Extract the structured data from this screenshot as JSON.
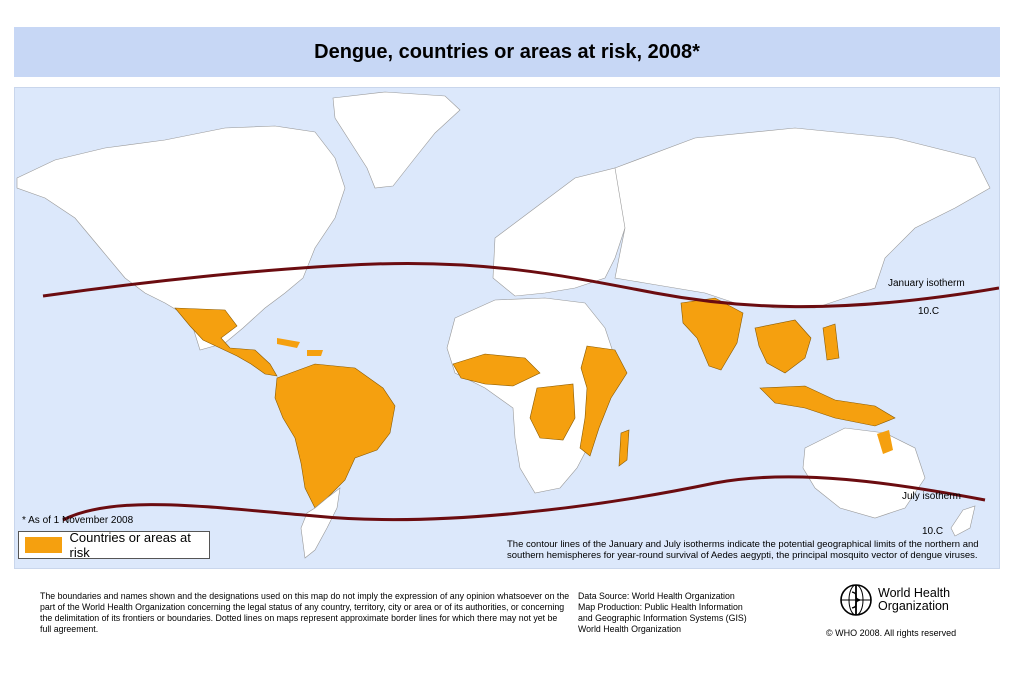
{
  "title": "Dengue, countries or areas at risk, 2008*",
  "footnote_asof": "* As of 1 November 2008",
  "legend": {
    "label": "Countries or areas at risk",
    "color": "#f5a00f"
  },
  "isotherms": {
    "january_label": "January isotherm",
    "january_temp": "10.C",
    "july_label": "July  isotherm",
    "july_temp": "10.C",
    "line_color": "#6b0c10"
  },
  "isotherm_note": "The contour lines of the January and July isotherms indicate the potential geographical limits of the northern and southern hemispheres for year-round survival of Aedes aegypti, the principal mosquito vector of dengue viruses.",
  "disclaimer": "The boundaries and names shown and the designations used on this map do not imply the expression of any opinion whatsoever on the part of the World Health Organization concerning the legal status of any country, territory, city or area or of its authorities, or concerning the delimitation of its frontiers or boundaries.  Dotted lines on maps represent approximate border lines for which there may not yet be full agreement.",
  "data_source": {
    "line1": "Data Source: World Health Organization",
    "line2": "Map Production: Public Health Information",
    "line3": "and Geographic Information Systems (GIS)",
    "line4": "World Health Organization"
  },
  "org": {
    "name_line1": "World Health",
    "name_line2": "Organization",
    "copyright": "© WHO 2008. All rights reserved"
  },
  "colors": {
    "ocean": "#dce8fb",
    "land": "#ffffff",
    "risk": "#f5a00f",
    "title_bg": "#c7d7f5"
  }
}
